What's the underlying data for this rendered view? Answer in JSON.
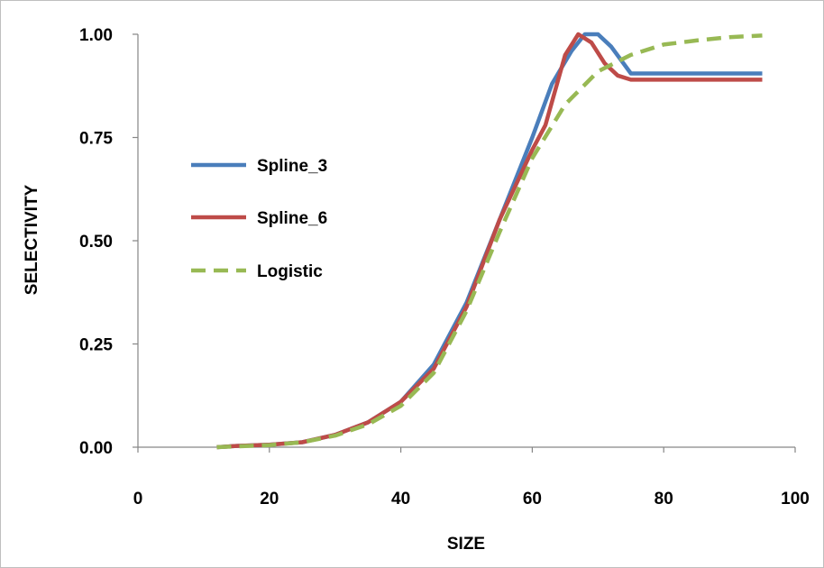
{
  "chart_data": {
    "type": "line",
    "title": "",
    "xlabel": "SIZE",
    "ylabel": "SELECTIVITY",
    "xlim": [
      0,
      100
    ],
    "ylim": [
      0,
      1
    ],
    "xticks": [
      "0",
      "20",
      "40",
      "60",
      "80",
      "100"
    ],
    "yticks": [
      "0.00",
      "0.25",
      "0.50",
      "0.75",
      "1.00"
    ],
    "grid": false,
    "legend_position": "left",
    "series": [
      {
        "name": "Spline_3",
        "color": "#4a7ebb",
        "style": "solid",
        "x": [
          12,
          15,
          20,
          25,
          30,
          35,
          40,
          45,
          50,
          55,
          60,
          63,
          66,
          68,
          70,
          72,
          75,
          80,
          85,
          90,
          95
        ],
        "y": [
          0.0,
          0.003,
          0.006,
          0.012,
          0.03,
          0.06,
          0.11,
          0.2,
          0.35,
          0.55,
          0.75,
          0.88,
          0.96,
          1.0,
          1.0,
          0.97,
          0.905,
          0.905,
          0.905,
          0.905,
          0.905
        ]
      },
      {
        "name": "Spline_6",
        "color": "#be4b48",
        "style": "solid",
        "x": [
          12,
          15,
          20,
          25,
          30,
          35,
          40,
          45,
          50,
          55,
          60,
          62,
          65,
          67,
          69,
          71,
          73,
          75,
          80,
          85,
          90,
          95
        ],
        "y": [
          0.0,
          0.003,
          0.006,
          0.012,
          0.03,
          0.06,
          0.11,
          0.19,
          0.34,
          0.55,
          0.72,
          0.78,
          0.95,
          1.0,
          0.98,
          0.93,
          0.9,
          0.89,
          0.89,
          0.89,
          0.89,
          0.89
        ]
      },
      {
        "name": "Logistic",
        "color": "#98b954",
        "style": "dashed",
        "x": [
          12,
          15,
          20,
          25,
          30,
          35,
          40,
          45,
          50,
          55,
          60,
          65,
          70,
          75,
          80,
          85,
          90,
          95
        ],
        "y": [
          0.0,
          0.002,
          0.005,
          0.012,
          0.028,
          0.055,
          0.1,
          0.18,
          0.33,
          0.52,
          0.7,
          0.83,
          0.91,
          0.95,
          0.975,
          0.985,
          0.993,
          0.997
        ]
      }
    ]
  }
}
